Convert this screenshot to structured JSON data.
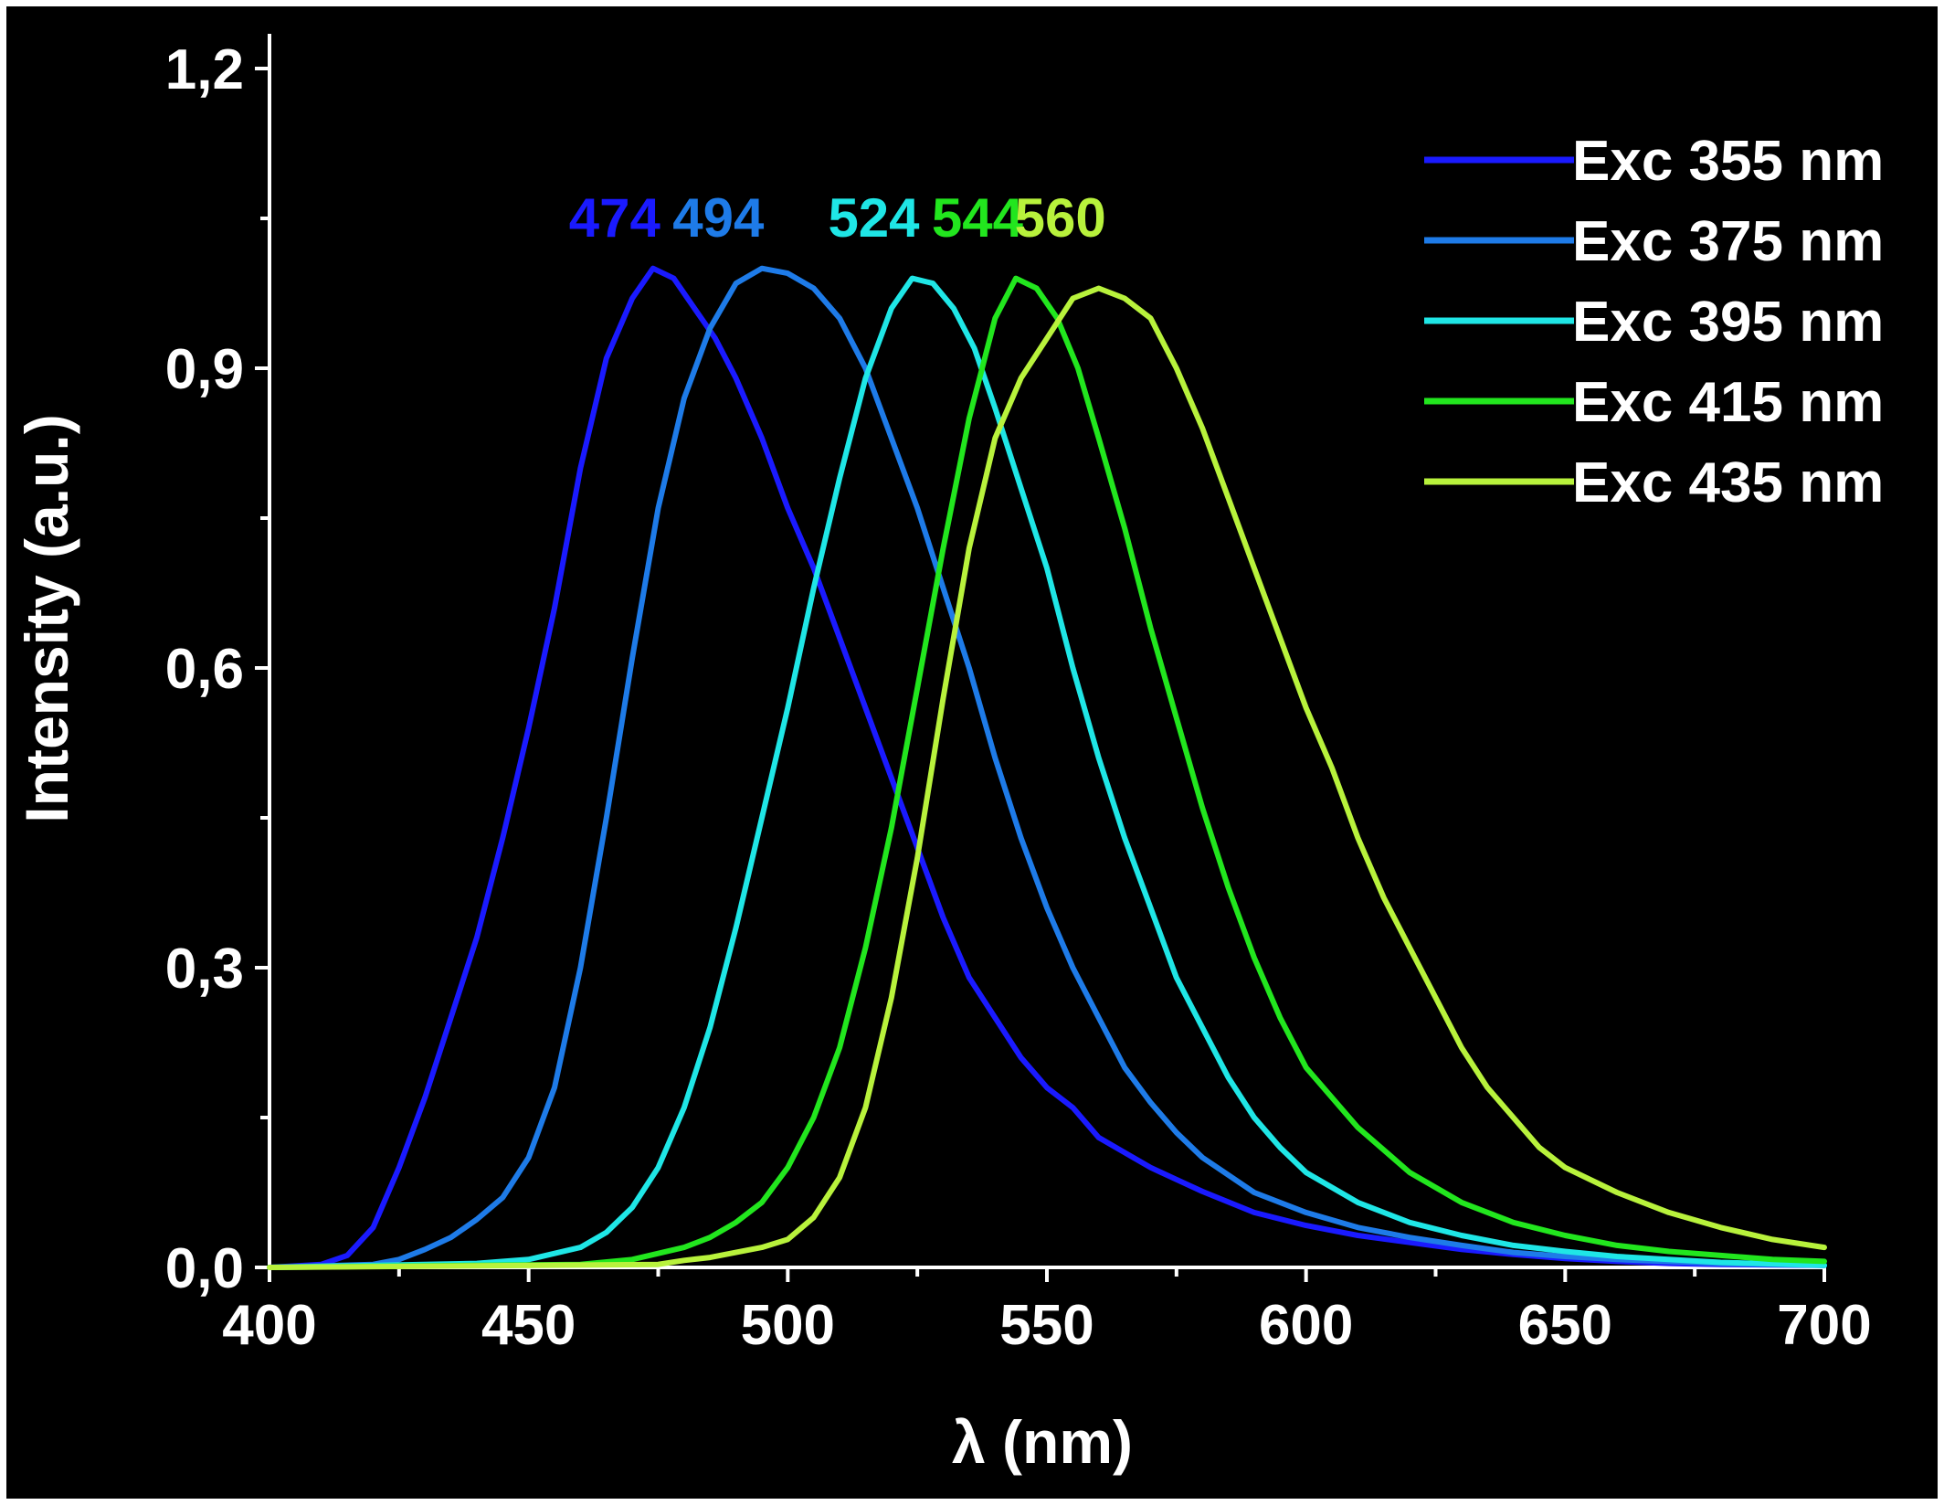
{
  "chart_data": {
    "type": "line",
    "xlabel": "λ (nm)",
    "ylabel": "Intensity (a.u.)",
    "xlim": [
      400,
      700
    ],
    "ylim": [
      0,
      1.25
    ],
    "x_ticks": [
      {
        "value": 400,
        "label": "400"
      },
      {
        "value": 450,
        "label": "450"
      },
      {
        "value": 500,
        "label": "500"
      },
      {
        "value": 550,
        "label": "550"
      },
      {
        "value": 600,
        "label": "600"
      },
      {
        "value": 650,
        "label": "650"
      },
      {
        "value": 700,
        "label": "700"
      }
    ],
    "y_ticks": [
      {
        "value": 0.0,
        "label": "0,0"
      },
      {
        "value": 0.3,
        "label": "0,3"
      },
      {
        "value": 0.6,
        "label": "0,6"
      },
      {
        "value": 0.9,
        "label": "0,9"
      },
      {
        "value": 1.2,
        "label": "1,2"
      }
    ],
    "grid": false,
    "legend_position": "top-right",
    "series": [
      {
        "name": "Exc 355 nm",
        "color": "#1a1aff",
        "peak": {
          "label": "474",
          "x": 474,
          "y": 1.0
        },
        "points": [
          [
            400,
            0
          ],
          [
            410,
            0.003
          ],
          [
            415,
            0.012
          ],
          [
            420,
            0.04
          ],
          [
            425,
            0.1
          ],
          [
            430,
            0.17
          ],
          [
            435,
            0.25
          ],
          [
            440,
            0.33
          ],
          [
            445,
            0.43
          ],
          [
            450,
            0.54
          ],
          [
            455,
            0.66
          ],
          [
            460,
            0.8
          ],
          [
            465,
            0.91
          ],
          [
            470,
            0.97
          ],
          [
            474,
            1.0
          ],
          [
            478,
            0.99
          ],
          [
            482,
            0.96
          ],
          [
            486,
            0.93
          ],
          [
            490,
            0.89
          ],
          [
            495,
            0.83
          ],
          [
            500,
            0.76
          ],
          [
            505,
            0.7
          ],
          [
            510,
            0.63
          ],
          [
            515,
            0.56
          ],
          [
            520,
            0.49
          ],
          [
            525,
            0.42
          ],
          [
            530,
            0.35
          ],
          [
            535,
            0.29
          ],
          [
            540,
            0.25
          ],
          [
            545,
            0.21
          ],
          [
            550,
            0.18
          ],
          [
            555,
            0.16
          ],
          [
            560,
            0.13
          ],
          [
            565,
            0.115
          ],
          [
            570,
            0.1
          ],
          [
            575,
            0.088
          ],
          [
            580,
            0.076
          ],
          [
            590,
            0.055
          ],
          [
            600,
            0.042
          ],
          [
            610,
            0.032
          ],
          [
            620,
            0.025
          ],
          [
            630,
            0.018
          ],
          [
            640,
            0.013
          ],
          [
            650,
            0.009
          ],
          [
            660,
            0.006
          ],
          [
            670,
            0.004
          ],
          [
            680,
            0.003
          ],
          [
            700,
            0.002
          ]
        ]
      },
      {
        "name": "Exc 375 nm",
        "color": "#1e7be8",
        "peak": {
          "label": "494",
          "x": 494,
          "y": 1.0
        },
        "points": [
          [
            400,
            0
          ],
          [
            420,
            0.003
          ],
          [
            425,
            0.008
          ],
          [
            430,
            0.018
          ],
          [
            435,
            0.03
          ],
          [
            440,
            0.048
          ],
          [
            445,
            0.07
          ],
          [
            450,
            0.11
          ],
          [
            455,
            0.18
          ],
          [
            460,
            0.3
          ],
          [
            465,
            0.45
          ],
          [
            470,
            0.61
          ],
          [
            475,
            0.76
          ],
          [
            480,
            0.87
          ],
          [
            485,
            0.94
          ],
          [
            490,
            0.985
          ],
          [
            495,
            1.0
          ],
          [
            500,
            0.995
          ],
          [
            505,
            0.98
          ],
          [
            510,
            0.95
          ],
          [
            515,
            0.9
          ],
          [
            520,
            0.83
          ],
          [
            525,
            0.76
          ],
          [
            530,
            0.68
          ],
          [
            535,
            0.6
          ],
          [
            540,
            0.51
          ],
          [
            545,
            0.43
          ],
          [
            550,
            0.36
          ],
          [
            555,
            0.3
          ],
          [
            560,
            0.25
          ],
          [
            565,
            0.2
          ],
          [
            570,
            0.165
          ],
          [
            575,
            0.135
          ],
          [
            580,
            0.11
          ],
          [
            590,
            0.075
          ],
          [
            600,
            0.055
          ],
          [
            610,
            0.04
          ],
          [
            620,
            0.03
          ],
          [
            630,
            0.022
          ],
          [
            640,
            0.015
          ],
          [
            650,
            0.011
          ],
          [
            660,
            0.008
          ],
          [
            680,
            0.004
          ],
          [
            700,
            0.002
          ]
        ]
      },
      {
        "name": "Exc 395 nm",
        "color": "#1fe6e6",
        "peak": {
          "label": "524",
          "x": 524,
          "y": 0.99
        },
        "points": [
          [
            400,
            0
          ],
          [
            440,
            0.004
          ],
          [
            450,
            0.008
          ],
          [
            460,
            0.02
          ],
          [
            465,
            0.035
          ],
          [
            470,
            0.06
          ],
          [
            475,
            0.1
          ],
          [
            480,
            0.16
          ],
          [
            485,
            0.24
          ],
          [
            490,
            0.34
          ],
          [
            495,
            0.45
          ],
          [
            500,
            0.56
          ],
          [
            505,
            0.68
          ],
          [
            510,
            0.79
          ],
          [
            515,
            0.89
          ],
          [
            520,
            0.96
          ],
          [
            524,
            0.99
          ],
          [
            528,
            0.985
          ],
          [
            532,
            0.96
          ],
          [
            536,
            0.92
          ],
          [
            540,
            0.86
          ],
          [
            545,
            0.78
          ],
          [
            550,
            0.7
          ],
          [
            555,
            0.6
          ],
          [
            560,
            0.51
          ],
          [
            565,
            0.43
          ],
          [
            570,
            0.36
          ],
          [
            575,
            0.29
          ],
          [
            580,
            0.24
          ],
          [
            585,
            0.19
          ],
          [
            590,
            0.15
          ],
          [
            595,
            0.12
          ],
          [
            600,
            0.095
          ],
          [
            610,
            0.065
          ],
          [
            620,
            0.045
          ],
          [
            630,
            0.032
          ],
          [
            640,
            0.022
          ],
          [
            650,
            0.016
          ],
          [
            660,
            0.011
          ],
          [
            680,
            0.005
          ],
          [
            700,
            0.002
          ]
        ]
      },
      {
        "name": "Exc 415 nm",
        "color": "#22e61e",
        "peak": {
          "label": "544",
          "x": 544,
          "y": 0.99
        },
        "points": [
          [
            400,
            0
          ],
          [
            460,
            0.003
          ],
          [
            470,
            0.008
          ],
          [
            480,
            0.02
          ],
          [
            485,
            0.03
          ],
          [
            490,
            0.045
          ],
          [
            495,
            0.065
          ],
          [
            500,
            0.1
          ],
          [
            505,
            0.15
          ],
          [
            510,
            0.22
          ],
          [
            515,
            0.32
          ],
          [
            520,
            0.44
          ],
          [
            525,
            0.58
          ],
          [
            530,
            0.72
          ],
          [
            535,
            0.85
          ],
          [
            540,
            0.95
          ],
          [
            544,
            0.99
          ],
          [
            548,
            0.98
          ],
          [
            552,
            0.95
          ],
          [
            556,
            0.9
          ],
          [
            560,
            0.83
          ],
          [
            565,
            0.74
          ],
          [
            570,
            0.64
          ],
          [
            575,
            0.55
          ],
          [
            580,
            0.46
          ],
          [
            585,
            0.38
          ],
          [
            590,
            0.31
          ],
          [
            595,
            0.25
          ],
          [
            600,
            0.2
          ],
          [
            610,
            0.14
          ],
          [
            620,
            0.095
          ],
          [
            630,
            0.065
          ],
          [
            640,
            0.045
          ],
          [
            650,
            0.032
          ],
          [
            660,
            0.022
          ],
          [
            670,
            0.016
          ],
          [
            680,
            0.012
          ],
          [
            690,
            0.008
          ],
          [
            700,
            0.006
          ]
        ]
      },
      {
        "name": "Exc 435 nm",
        "color": "#b8f23c",
        "peak": {
          "label": "560",
          "x": 560,
          "y": 0.98
        },
        "points": [
          [
            400,
            0
          ],
          [
            475,
            0.003
          ],
          [
            480,
            0.007
          ],
          [
            485,
            0.01
          ],
          [
            490,
            0.015
          ],
          [
            495,
            0.02
          ],
          [
            500,
            0.028
          ],
          [
            505,
            0.05
          ],
          [
            510,
            0.09
          ],
          [
            515,
            0.16
          ],
          [
            520,
            0.27
          ],
          [
            525,
            0.41
          ],
          [
            530,
            0.57
          ],
          [
            535,
            0.72
          ],
          [
            540,
            0.83
          ],
          [
            545,
            0.89
          ],
          [
            550,
            0.93
          ],
          [
            555,
            0.97
          ],
          [
            560,
            0.98
          ],
          [
            565,
            0.97
          ],
          [
            570,
            0.95
          ],
          [
            575,
            0.9
          ],
          [
            580,
            0.84
          ],
          [
            585,
            0.77
          ],
          [
            590,
            0.7
          ],
          [
            595,
            0.63
          ],
          [
            600,
            0.56
          ],
          [
            605,
            0.5
          ],
          [
            610,
            0.43
          ],
          [
            615,
            0.37
          ],
          [
            620,
            0.32
          ],
          [
            625,
            0.27
          ],
          [
            630,
            0.22
          ],
          [
            635,
            0.18
          ],
          [
            640,
            0.15
          ],
          [
            645,
            0.12
          ],
          [
            650,
            0.1
          ],
          [
            660,
            0.075
          ],
          [
            670,
            0.055
          ],
          [
            680,
            0.04
          ],
          [
            690,
            0.028
          ],
          [
            700,
            0.02
          ]
        ]
      }
    ]
  }
}
